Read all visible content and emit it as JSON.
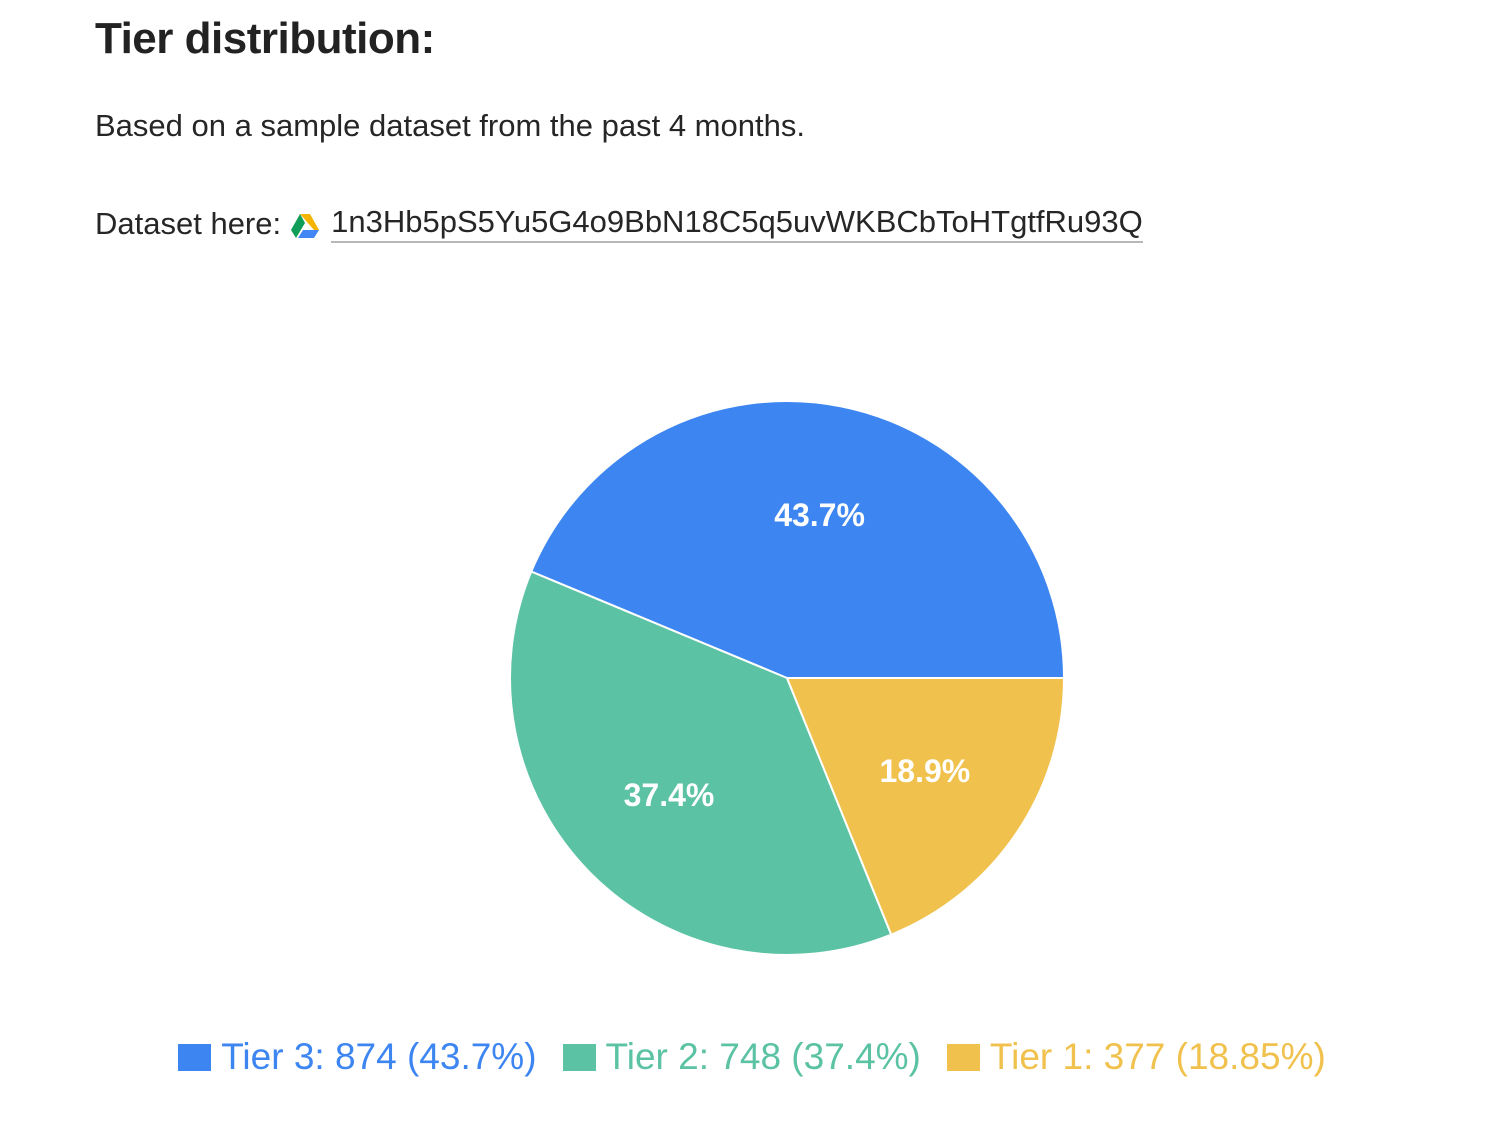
{
  "page": {
    "title": "Tier distribution:",
    "intro": "Based on a sample dataset from the past 4 months.",
    "dataset_label": "Dataset here:",
    "dataset_link_text": "1n3Hb5pS5Yu5G4o9BbN18C5q5uvWKBCbToHTgtfRu93Q",
    "dataset_icon": "google-drive-icon"
  },
  "chart_data": {
    "type": "pie",
    "title": "",
    "slices": [
      {
        "name": "Tier 3",
        "value": 874,
        "percent_label": "43.7%",
        "legend_text": "Tier 3: 874 (43.7%)",
        "color": "#3d86f2"
      },
      {
        "name": "Tier 2",
        "value": 748,
        "percent_label": "37.4%",
        "legend_text": "Tier 2: 748 (37.4%)",
        "color": "#5bc2a3"
      },
      {
        "name": "Tier 1",
        "value": 377,
        "percent_label": "18.9%",
        "legend_text": "Tier 1: 377 (18.85%)",
        "color": "#f1c14e"
      }
    ],
    "legend_position": "bottom",
    "start_angle": "3 o'clock",
    "direction": "counter-clockwise"
  }
}
